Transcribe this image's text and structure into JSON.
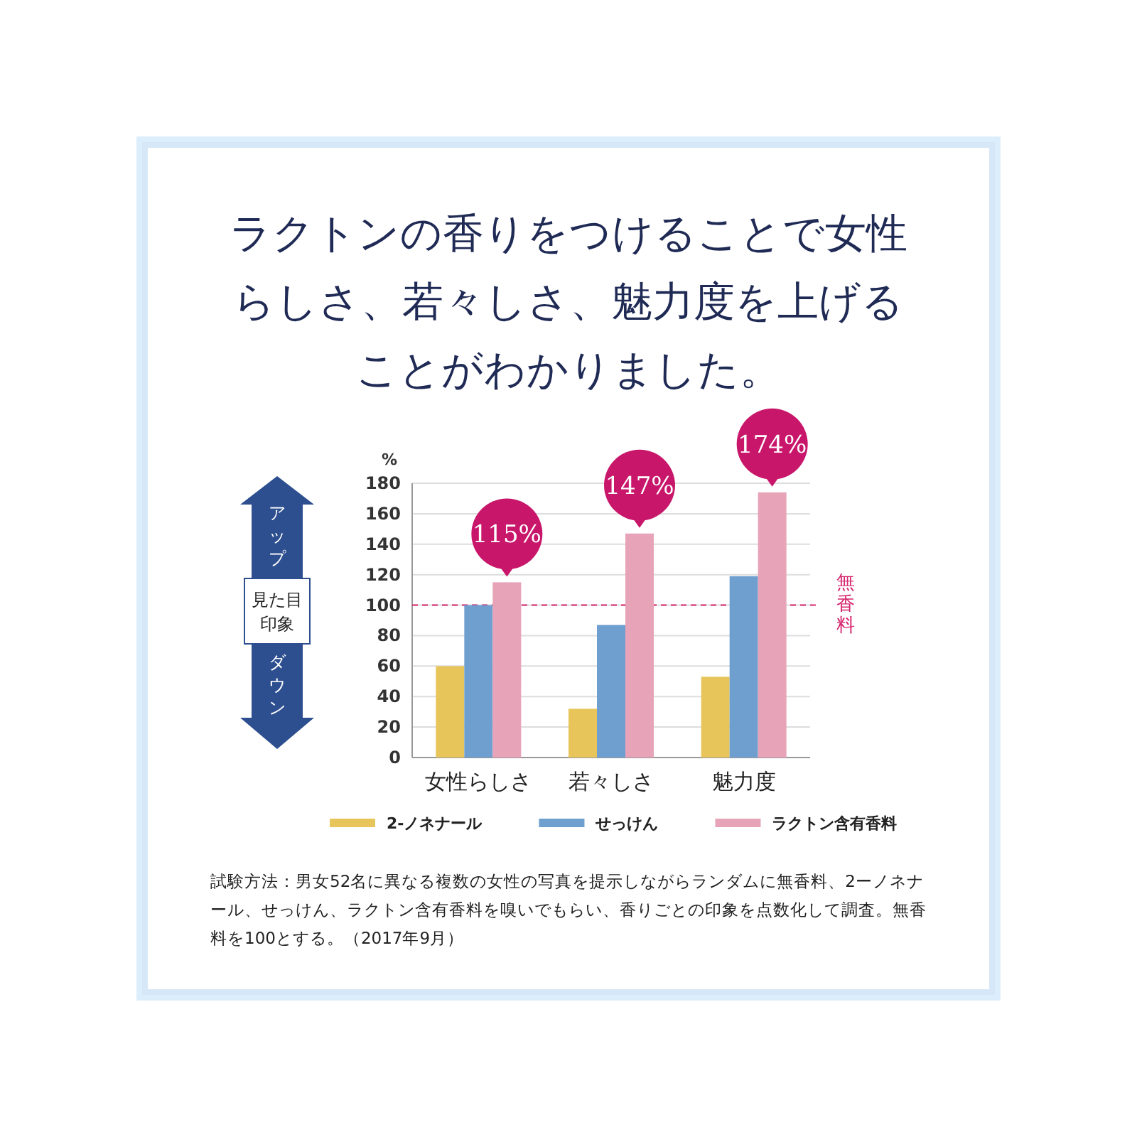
{
  "chart_data": {
    "type": "bar",
    "title": "ラクトンの香りをつけることで女性らしさ、若々しさ、魅力度を上げることがわかりました。",
    "ylabel": "%",
    "categories": [
      "女性らしさ",
      "若々しさ",
      "魅力度"
    ],
    "series": [
      {
        "name": "2-ノネナール",
        "color": "#e8c55a",
        "values": [
          60,
          32,
          53
        ]
      },
      {
        "name": "せっけん",
        "color": "#6f9fcf",
        "values": [
          100,
          87,
          119
        ]
      },
      {
        "name": "ラクトン含有香料",
        "color": "#e7a3b8",
        "values": [
          115,
          147,
          174
        ],
        "value_labels": [
          "115%",
          "147%",
          "174%"
        ]
      }
    ],
    "ylim": [
      0,
      180
    ],
    "yticks": [
      0,
      20,
      40,
      60,
      80,
      100,
      120,
      140,
      160,
      180
    ],
    "grid": "y",
    "legend": "bottom",
    "ref_lines": [
      {
        "axis": "y",
        "value": 100,
        "label": "無香料",
        "color": "#d6246e",
        "line_style": "dashed"
      }
    ],
    "annotations": [
      "アップ",
      "見た目印象",
      "ダウン",
      "試験方法：男女52名に異なる複数の女性の写真を提示しながらランダムに無香料、2ーノネナール、せっけん、ラクトン含有香料を嗅いでもらい、香りごとの印象を点数化して調査。無香料を100とする。（2017年9月）"
    ]
  }
}
